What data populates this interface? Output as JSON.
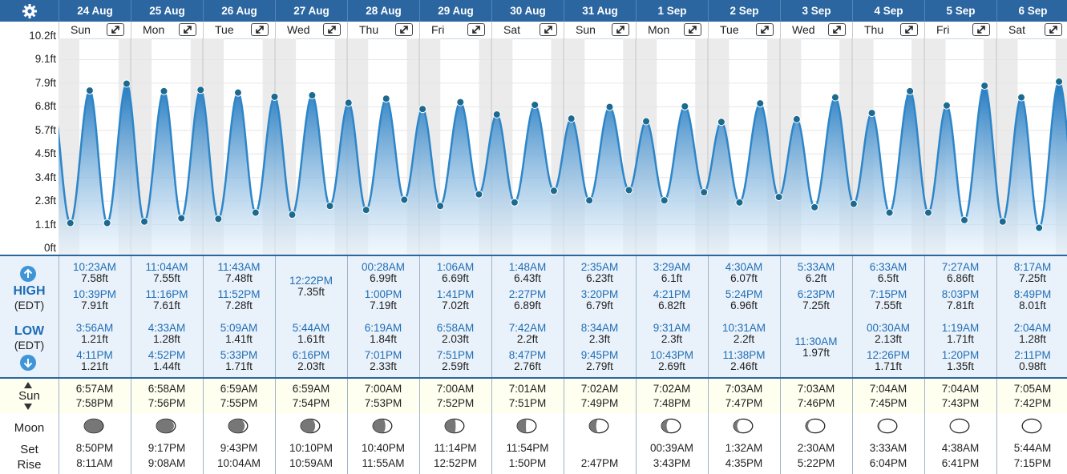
{
  "header": {
    "dates": [
      "24 Aug",
      "25 Aug",
      "26 Aug",
      "27 Aug",
      "28 Aug",
      "29 Aug",
      "30 Aug",
      "31 Aug",
      "1 Sep",
      "2 Sep",
      "3 Sep",
      "4 Sep",
      "5 Sep",
      "6 Sep"
    ],
    "days": [
      "Sun",
      "Mon",
      "Tue",
      "Wed",
      "Thu",
      "Fri",
      "Sat",
      "Sun",
      "Mon",
      "Tue",
      "Wed",
      "Thu",
      "Fri",
      "Sat"
    ]
  },
  "labels": {
    "high": "HIGH",
    "high_tz": "(EDT)",
    "low": "LOW",
    "low_tz": "(EDT)",
    "sun": "Sun",
    "moon": "Moon",
    "set": "Set",
    "rise": "Rise"
  },
  "colors": {
    "header_bg": "#2b66a1",
    "tide_line": "#2e86c8",
    "tide_fill_top": "#1f78c0",
    "accent": "#1f6db5"
  },
  "chart_data": {
    "type": "line",
    "ylabel": "",
    "y_ticks": [
      "0ft",
      "1.1ft",
      "2.3ft",
      "3.4ft",
      "4.5ft",
      "5.7ft",
      "6.8ft",
      "7.9ft",
      "9.1ft",
      "10.2ft"
    ],
    "ylim": [
      0,
      10.2
    ],
    "x": [
      "24 Aug 3:56AM",
      "24 Aug 10:23AM",
      "24 Aug 4:11PM",
      "24 Aug 10:39PM",
      "25 Aug 4:33AM",
      "25 Aug 11:04AM",
      "25 Aug 4:52PM",
      "25 Aug 11:16PM",
      "26 Aug 5:09AM",
      "26 Aug 11:43AM",
      "26 Aug 5:33PM",
      "26 Aug 11:52PM",
      "27 Aug 5:44AM",
      "27 Aug 12:22PM",
      "27 Aug 6:16PM",
      "28 Aug 12:28AM",
      "28 Aug 6:19AM",
      "28 Aug 1:00PM",
      "28 Aug 7:01PM",
      "29 Aug 1:06AM",
      "29 Aug 6:58AM",
      "29 Aug 1:41PM",
      "29 Aug 7:51PM",
      "30 Aug 1:48AM",
      "30 Aug 7:42AM",
      "30 Aug 2:27PM",
      "30 Aug 8:47PM",
      "31 Aug 2:35AM",
      "31 Aug 8:34AM",
      "31 Aug 3:20PM",
      "31 Aug 9:45PM",
      "1 Sep 3:29AM",
      "1 Sep 9:31AM",
      "1 Sep 4:21PM",
      "1 Sep 10:43PM",
      "2 Sep 4:30AM",
      "2 Sep 10:31AM",
      "2 Sep 5:24PM",
      "2 Sep 11:38PM",
      "3 Sep 5:33AM",
      "3 Sep 11:30AM",
      "3 Sep 6:23PM",
      "4 Sep 12:30AM",
      "4 Sep 6:33AM",
      "4 Sep 12:26PM",
      "4 Sep 7:15PM",
      "5 Sep 1:19AM",
      "5 Sep 7:27AM",
      "5 Sep 1:20PM",
      "5 Sep 8:03PM",
      "6 Sep 2:04AM",
      "6 Sep 8:17AM",
      "6 Sep 2:11PM",
      "6 Sep 8:49PM"
    ],
    "x_hours": [
      3.93,
      10.38,
      16.18,
      22.65,
      28.55,
      35.07,
      40.87,
      47.27,
      53.15,
      59.72,
      65.55,
      71.87,
      77.73,
      84.37,
      90.27,
      96.47,
      102.32,
      109.0,
      115.02,
      121.1,
      126.97,
      133.68,
      139.85,
      145.8,
      151.7,
      158.45,
      164.78,
      170.58,
      176.57,
      183.33,
      189.75,
      195.48,
      201.52,
      208.35,
      214.72,
      220.5,
      226.52,
      233.4,
      239.63,
      245.55,
      251.5,
      258.38,
      264.5,
      270.55,
      276.43,
      283.25,
      289.32,
      295.45,
      301.33,
      308.05,
      314.07,
      320.28,
      326.18,
      332.82
    ],
    "y": [
      1.21,
      7.58,
      1.21,
      7.91,
      1.28,
      7.55,
      1.44,
      7.61,
      1.41,
      7.48,
      1.71,
      7.28,
      1.61,
      7.35,
      2.03,
      6.99,
      1.84,
      7.19,
      2.33,
      6.69,
      2.03,
      7.02,
      2.59,
      6.43,
      2.2,
      6.89,
      2.76,
      6.23,
      2.3,
      6.79,
      2.79,
      6.1,
      2.3,
      6.82,
      2.69,
      6.07,
      2.2,
      6.96,
      2.46,
      6.2,
      1.97,
      7.25,
      2.13,
      6.5,
      1.71,
      7.55,
      1.71,
      6.86,
      1.35,
      7.81,
      1.28,
      7.25,
      0.98,
      8.01
    ]
  },
  "days": [
    {
      "high": [
        {
          "t": "10:23AM",
          "h": "7.58ft"
        },
        {
          "t": "10:39PM",
          "h": "7.91ft"
        }
      ],
      "low": [
        {
          "t": "3:56AM",
          "h": "1.21ft"
        },
        {
          "t": "4:11PM",
          "h": "1.21ft"
        }
      ],
      "sun": [
        "6:57AM",
        "7:58PM"
      ],
      "moon": [
        "8:50PM",
        "8:11AM"
      ],
      "phase": 0.97
    },
    {
      "high": [
        {
          "t": "11:04AM",
          "h": "7.55ft"
        },
        {
          "t": "11:16PM",
          "h": "7.61ft"
        }
      ],
      "low": [
        {
          "t": "4:33AM",
          "h": "1.28ft"
        },
        {
          "t": "4:52PM",
          "h": "1.44ft"
        }
      ],
      "sun": [
        "6:58AM",
        "7:56PM"
      ],
      "moon": [
        "9:17PM",
        "9:08AM"
      ],
      "phase": 0.92
    },
    {
      "high": [
        {
          "t": "11:43AM",
          "h": "7.48ft"
        },
        {
          "t": "11:52PM",
          "h": "7.28ft"
        }
      ],
      "low": [
        {
          "t": "5:09AM",
          "h": "1.41ft"
        },
        {
          "t": "5:33PM",
          "h": "1.71ft"
        }
      ],
      "sun": [
        "6:59AM",
        "7:55PM"
      ],
      "moon": [
        "9:43PM",
        "10:04AM"
      ],
      "phase": 0.85
    },
    {
      "high": [
        {
          "t": "12:22PM",
          "h": "7.35ft"
        }
      ],
      "low": [
        {
          "t": "5:44AM",
          "h": "1.61ft"
        },
        {
          "t": "6:16PM",
          "h": "2.03ft"
        }
      ],
      "sun": [
        "6:59AM",
        "7:54PM"
      ],
      "moon": [
        "10:10PM",
        "10:59AM"
      ],
      "phase": 0.76
    },
    {
      "high": [
        {
          "t": "00:28AM",
          "h": "6.99ft"
        },
        {
          "t": "1:00PM",
          "h": "7.19ft"
        }
      ],
      "low": [
        {
          "t": "6:19AM",
          "h": "1.84ft"
        },
        {
          "t": "7:01PM",
          "h": "2.33ft"
        }
      ],
      "sun": [
        "7:00AM",
        "7:53PM"
      ],
      "moon": [
        "10:40PM",
        "11:55AM"
      ],
      "phase": 0.66
    },
    {
      "high": [
        {
          "t": "1:06AM",
          "h": "6.69ft"
        },
        {
          "t": "1:41PM",
          "h": "7.02ft"
        }
      ],
      "low": [
        {
          "t": "6:58AM",
          "h": "2.03ft"
        },
        {
          "t": "7:51PM",
          "h": "2.59ft"
        }
      ],
      "sun": [
        "7:00AM",
        "7:52PM"
      ],
      "moon": [
        "11:14PM",
        "12:52PM"
      ],
      "phase": 0.56
    },
    {
      "high": [
        {
          "t": "1:48AM",
          "h": "6.43ft"
        },
        {
          "t": "2:27PM",
          "h": "6.89ft"
        }
      ],
      "low": [
        {
          "t": "7:42AM",
          "h": "2.2ft"
        },
        {
          "t": "8:47PM",
          "h": "2.76ft"
        }
      ],
      "sun": [
        "7:01AM",
        "7:51PM"
      ],
      "moon": [
        "11:54PM",
        "1:50PM"
      ],
      "phase": 0.46
    },
    {
      "high": [
        {
          "t": "2:35AM",
          "h": "6.23ft"
        },
        {
          "t": "3:20PM",
          "h": "6.79ft"
        }
      ],
      "low": [
        {
          "t": "8:34AM",
          "h": "2.3ft"
        },
        {
          "t": "9:45PM",
          "h": "2.79ft"
        }
      ],
      "sun": [
        "7:02AM",
        "7:49PM"
      ],
      "moon": [
        "",
        "2:47PM"
      ],
      "phase": 0.36
    },
    {
      "high": [
        {
          "t": "3:29AM",
          "h": "6.1ft"
        },
        {
          "t": "4:21PM",
          "h": "6.82ft"
        }
      ],
      "low": [
        {
          "t": "9:31AM",
          "h": "2.3ft"
        },
        {
          "t": "10:43PM",
          "h": "2.69ft"
        }
      ],
      "sun": [
        "7:02AM",
        "7:48PM"
      ],
      "moon": [
        "00:39AM",
        "3:43PM"
      ],
      "phase": 0.27
    },
    {
      "high": [
        {
          "t": "4:30AM",
          "h": "6.07ft"
        },
        {
          "t": "5:24PM",
          "h": "6.96ft"
        }
      ],
      "low": [
        {
          "t": "10:31AM",
          "h": "2.2ft"
        },
        {
          "t": "11:38PM",
          "h": "2.46ft"
        }
      ],
      "sun": [
        "7:03AM",
        "7:47PM"
      ],
      "moon": [
        "1:32AM",
        "4:35PM"
      ],
      "phase": 0.19
    },
    {
      "high": [
        {
          "t": "5:33AM",
          "h": "6.2ft"
        },
        {
          "t": "6:23PM",
          "h": "7.25ft"
        }
      ],
      "low": [
        {
          "t": "11:30AM",
          "h": "1.97ft"
        }
      ],
      "sun": [
        "7:03AM",
        "7:46PM"
      ],
      "moon": [
        "2:30AM",
        "5:22PM"
      ],
      "phase": 0.12
    },
    {
      "high": [
        {
          "t": "6:33AM",
          "h": "6.5ft"
        },
        {
          "t": "7:15PM",
          "h": "7.55ft"
        }
      ],
      "low": [
        {
          "t": "00:30AM",
          "h": "2.13ft"
        },
        {
          "t": "12:26PM",
          "h": "1.71ft"
        }
      ],
      "sun": [
        "7:04AM",
        "7:45PM"
      ],
      "moon": [
        "3:33AM",
        "6:04PM"
      ],
      "phase": 0.07
    },
    {
      "high": [
        {
          "t": "7:27AM",
          "h": "6.86ft"
        },
        {
          "t": "8:03PM",
          "h": "7.81ft"
        }
      ],
      "low": [
        {
          "t": "1:19AM",
          "h": "1.71ft"
        },
        {
          "t": "1:20PM",
          "h": "1.35ft"
        }
      ],
      "sun": [
        "7:04AM",
        "7:43PM"
      ],
      "moon": [
        "4:38AM",
        "6:41PM"
      ],
      "phase": 0.03
    },
    {
      "high": [
        {
          "t": "8:17AM",
          "h": "7.25ft"
        },
        {
          "t": "8:49PM",
          "h": "8.01ft"
        }
      ],
      "low": [
        {
          "t": "2:04AM",
          "h": "1.28ft"
        },
        {
          "t": "2:11PM",
          "h": "0.98ft"
        }
      ],
      "sun": [
        "7:05AM",
        "7:42PM"
      ],
      "moon": [
        "5:44AM",
        "7:15PM"
      ],
      "phase": 0.0
    }
  ]
}
